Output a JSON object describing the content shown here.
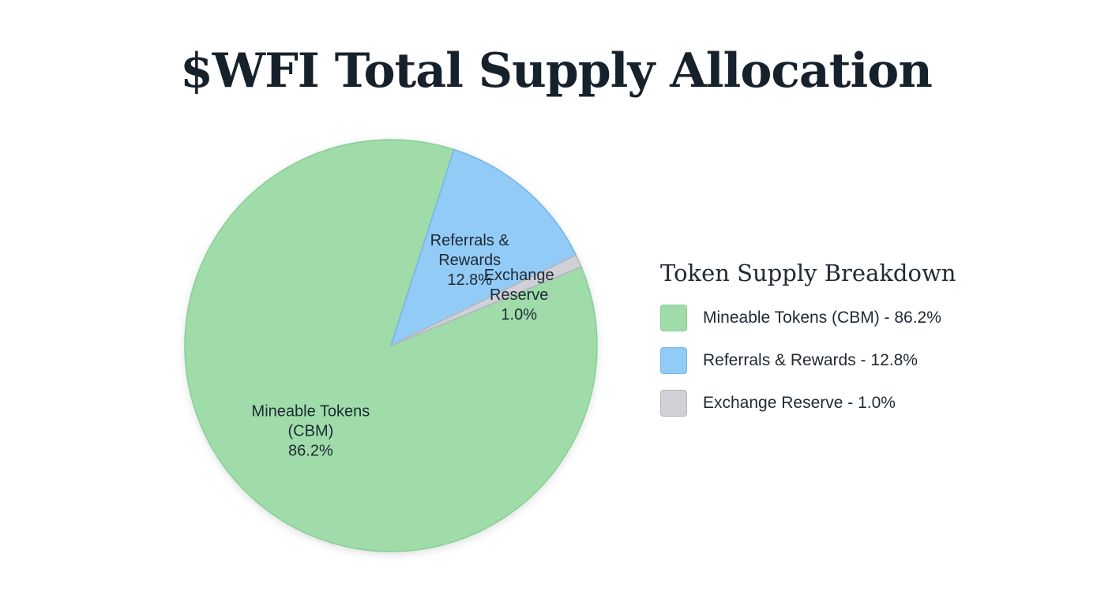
{
  "chart_data": {
    "type": "pie",
    "title": "$WFI Total Supply Allocation",
    "slices": [
      {
        "label_lines": [
          "Mineable Tokens",
          "(CBM)",
          "86.2%"
        ],
        "value": 86.2,
        "color": "#9fdcaa",
        "stroke": "#86cf94"
      },
      {
        "label_lines": [
          "Referrals &",
          "Rewards",
          "12.8%"
        ],
        "value": 12.8,
        "color": "#92cbf5",
        "stroke": "#74b5e8"
      },
      {
        "label_lines": [
          "Exchange",
          "Reserve",
          "1.0%"
        ],
        "value": 1.0,
        "color": "#cfd1d6",
        "stroke": "#b3b6bc"
      }
    ],
    "legend_placement": "right"
  },
  "legend": {
    "title": "Token Supply Breakdown",
    "items": [
      {
        "text": "Mineable Tokens (CBM) - 86.2%",
        "color": "#9fdcaa",
        "border": "#86cf94"
      },
      {
        "text": "Referrals & Rewards - 12.8%",
        "color": "#92cbf5",
        "border": "#74b5e8"
      },
      {
        "text": "Exchange Reserve - 1.0%",
        "color": "#cfd1d6",
        "border": "#b3b6bc"
      }
    ]
  }
}
